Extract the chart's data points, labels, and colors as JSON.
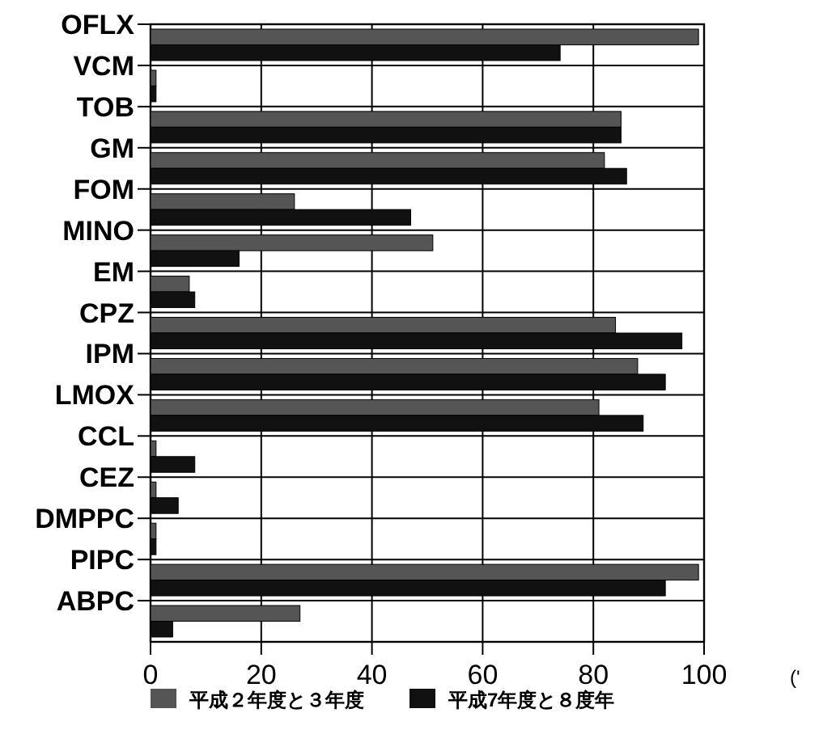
{
  "chart_data": {
    "type": "bar",
    "orientation": "horizontal",
    "xlabel": "('",
    "categories": [
      "OFLX",
      "VCM",
      "TOB",
      "GM",
      "FOM",
      "MINO",
      "EM",
      "CPZ",
      "IPM",
      "LMOX",
      "CCL",
      "CEZ",
      "DMPPC",
      "PIPC",
      "ABPC"
    ],
    "series": [
      {
        "name": "平成２年度と３年度",
        "color": "#555555",
        "values": [
          99,
          1,
          85,
          82,
          26,
          51,
          7,
          84,
          88,
          81,
          1,
          1,
          1,
          99,
          27
        ]
      },
      {
        "name": "平成7年度と８度年",
        "color": "#111111",
        "values": [
          74,
          1,
          85,
          86,
          47,
          16,
          8,
          96,
          93,
          89,
          8,
          5,
          1,
          93,
          4
        ]
      }
    ],
    "xlim": [
      0,
      100
    ],
    "xticks": [
      0,
      20,
      40,
      60,
      80,
      100
    ],
    "grid": true,
    "legend": "bottom"
  }
}
